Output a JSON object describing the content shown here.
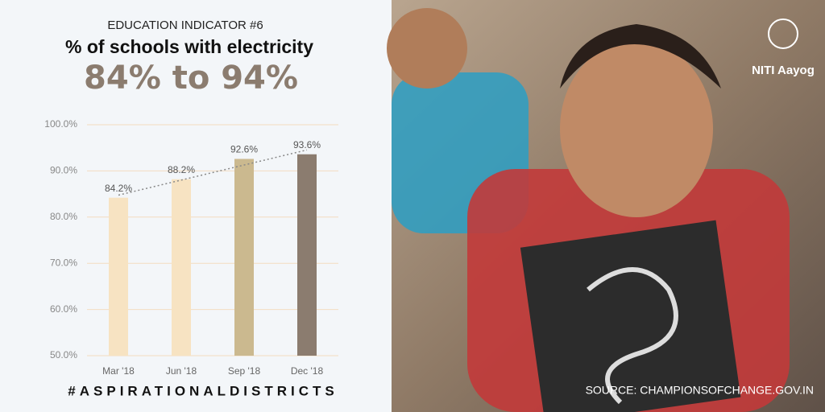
{
  "header": {
    "kicker": "EDUCATION INDICATOR #6",
    "title": "% of schools with electricity",
    "highlight": "84% to 94%"
  },
  "chart_data": {
    "type": "bar",
    "categories": [
      "Mar '18",
      "Jun '18",
      "Sep '18",
      "Dec '18"
    ],
    "values": [
      84.2,
      88.2,
      92.6,
      93.6
    ],
    "value_labels": [
      "84.2%",
      "88.2%",
      "92.6%",
      "93.6%"
    ],
    "colors": [
      "#f7e3c2",
      "#f7e3c2",
      "#cbb98f",
      "#8b7c6f"
    ],
    "ylim": [
      50,
      100
    ],
    "yticks": [
      {
        "value": 50,
        "label": "50.0%"
      },
      {
        "value": 60,
        "label": "60.0%"
      },
      {
        "value": 70,
        "label": "70.0%"
      },
      {
        "value": 80,
        "label": "80.0%"
      },
      {
        "value": 90,
        "label": "90.0%"
      },
      {
        "value": 100,
        "label": "100.0%"
      }
    ],
    "grid": true,
    "trendline": true
  },
  "footer": {
    "hashtag": "#ASPIRATIONALDISTRICTS",
    "source": "SOURCE: CHAMPIONSOFCHANGE.GOV.IN",
    "logo": "NITI Aayog"
  }
}
